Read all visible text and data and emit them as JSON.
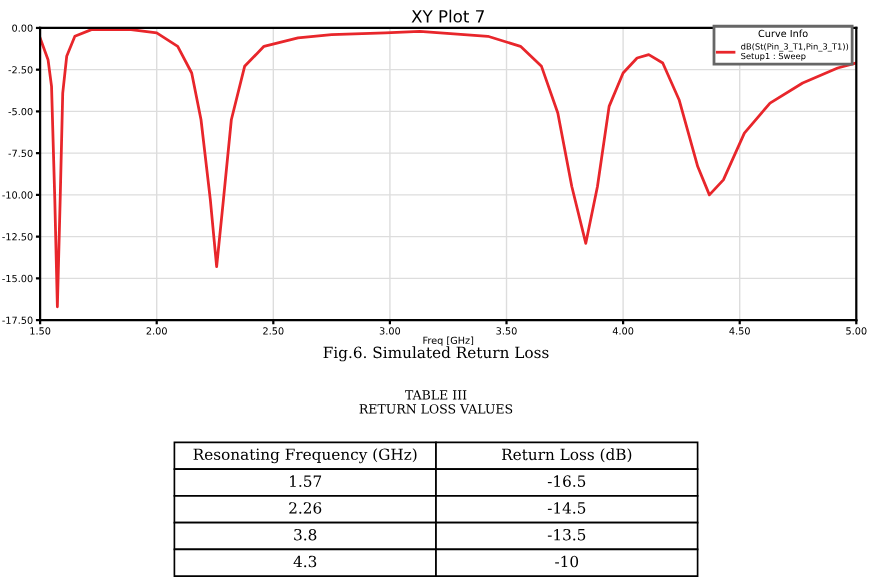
{
  "chart_data": {
    "type": "line",
    "title": "XY Plot 7",
    "xlabel": "Freq [GHz]",
    "legend_title": "Curve Info",
    "legend": "top right",
    "grid": true,
    "marker": "none",
    "line_style": "solid",
    "xlim": [
      1.5,
      5.0
    ],
    "ylim": [
      -17.5,
      0
    ],
    "xticks": [
      {
        "value": 1.5,
        "label": "1.50"
      },
      {
        "value": 2.0,
        "label": "2.00"
      },
      {
        "value": 2.5,
        "label": "2.50"
      },
      {
        "value": 3.0,
        "label": "3.00"
      },
      {
        "value": 3.5,
        "label": "3.50"
      },
      {
        "value": 4.0,
        "label": "4.00"
      },
      {
        "value": 4.5,
        "label": "4.50"
      },
      {
        "value": 5.0,
        "label": "5.00"
      }
    ],
    "yticks": [
      {
        "value": -17.5,
        "label": "-17.50"
      },
      {
        "value": -15,
        "label": "-15.00"
      },
      {
        "value": -12.5,
        "label": "-12.50"
      },
      {
        "value": -10,
        "label": "-10.00"
      },
      {
        "value": -7.5,
        "label": "-7.50"
      },
      {
        "value": -5,
        "label": "-5.00"
      },
      {
        "value": -2.5,
        "label": "-2.50"
      },
      {
        "value": 0,
        "label": "0.00"
      }
    ],
    "series": [
      {
        "name": "dB(St(Pin_3_T1,Pin_3_T1))\nSetup1 : Sweep",
        "color": "#e8262b",
        "x": [
          1.5,
          1.534,
          1.549,
          1.563,
          1.574,
          1.586,
          1.597,
          1.614,
          1.649,
          1.72,
          1.89,
          2.0,
          2.09,
          2.15,
          2.19,
          2.23,
          2.257,
          2.286,
          2.32,
          2.377,
          2.46,
          2.606,
          2.75,
          2.98,
          3.128,
          3.42,
          3.56,
          3.65,
          3.72,
          3.78,
          3.84,
          3.89,
          3.94,
          4.0,
          4.06,
          4.11,
          4.17,
          4.24,
          4.32,
          4.37,
          4.43,
          4.52,
          4.63,
          4.77,
          4.92,
          5.0
        ],
        "values": [
          -0.6,
          -1.9,
          -3.5,
          -10.3,
          -16.7,
          -10.3,
          -3.9,
          -1.7,
          -0.5,
          -0.1,
          -0.1,
          -0.3,
          -1.1,
          -2.7,
          -5.5,
          -10.3,
          -14.3,
          -10.3,
          -5.5,
          -2.3,
          -1.1,
          -0.6,
          -0.4,
          -0.3,
          -0.2,
          -0.5,
          -1.1,
          -2.3,
          -5.1,
          -9.5,
          -12.9,
          -9.5,
          -4.7,
          -2.7,
          -1.8,
          -1.6,
          -2.1,
          -4.3,
          -8.3,
          -10.0,
          -9.1,
          -6.3,
          -4.5,
          -3.3,
          -2.4,
          -2.1
        ]
      }
    ],
    "annotations": [
      "Fig.6. Simulated Return Loss",
      "TABLE III\nRETURN LOSS VALUES",
      "Resonating Frequency (GHz)",
      "Return Loss (dB)",
      "1.57",
      "-16.5",
      "2.26",
      "-14.5",
      "3.8",
      "-13.5",
      "4.3",
      "-10"
    ]
  }
}
